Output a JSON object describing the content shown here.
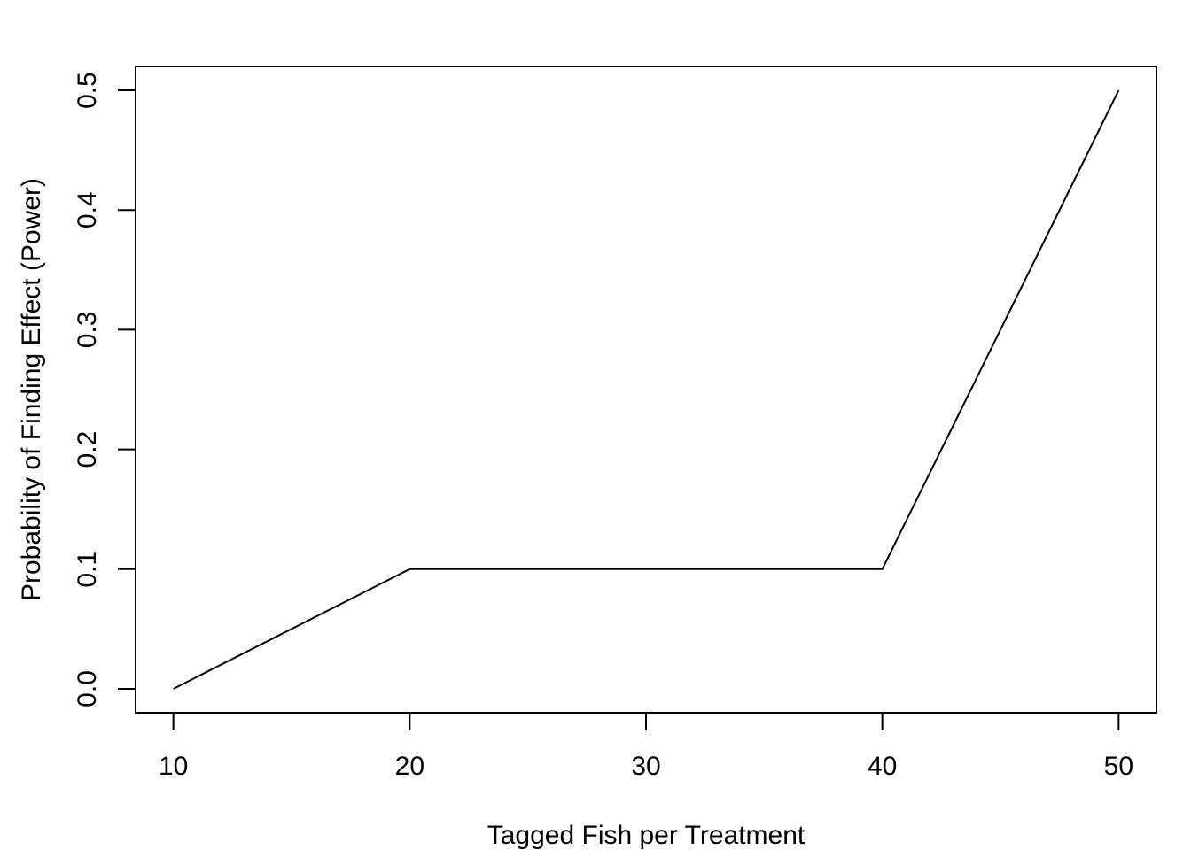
{
  "chart_data": {
    "type": "line",
    "title": "",
    "xlabel": "Tagged Fish per Treatment",
    "ylabel": "Probability of Finding Effect (Power)",
    "x": [
      10,
      20,
      30,
      40,
      50
    ],
    "series": [
      {
        "values": [
          0.0,
          0.1,
          0.1,
          0.1,
          0.5
        ],
        "color": "#000000"
      }
    ],
    "xlim": [
      8.4,
      51.6
    ],
    "ylim": [
      -0.02,
      0.52
    ],
    "xticks": [
      10,
      20,
      30,
      40,
      50
    ],
    "xtick_labels": [
      "10",
      "20",
      "30",
      "40",
      "50"
    ],
    "yticks": [
      0.0,
      0.1,
      0.2,
      0.3,
      0.4,
      0.5
    ],
    "ytick_labels": [
      "0.0",
      "0.1",
      "0.2",
      "0.3",
      "0.4",
      "0.5"
    ],
    "grid": false,
    "legend": "none"
  }
}
